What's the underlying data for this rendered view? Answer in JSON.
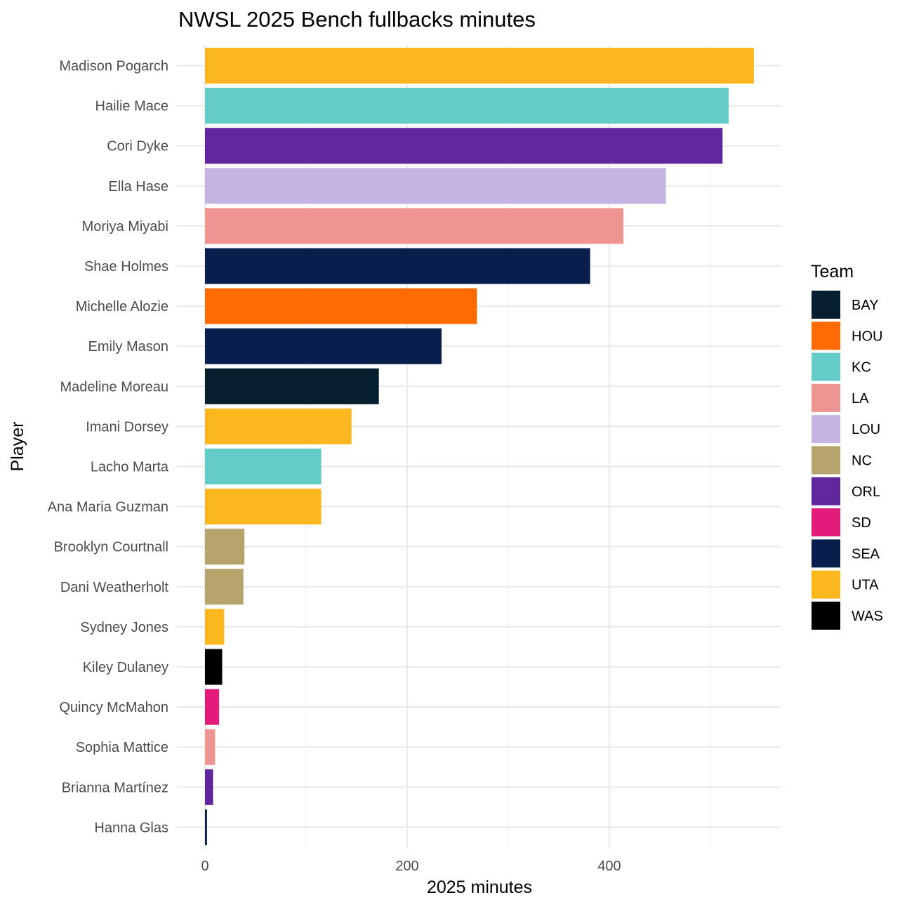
{
  "chart_data": {
    "type": "bar",
    "orientation": "horizontal",
    "title": "NWSL 2025 Bench fullbacks minutes",
    "xlabel": "2025 minutes",
    "ylabel": "Player",
    "xlim": [
      0,
      570
    ],
    "x_ticks": [
      0,
      200,
      400
    ],
    "x_tick_labels": [
      "0",
      "200",
      "400"
    ],
    "grid": true,
    "legend_title": "Team",
    "legend_position": "right",
    "legend": [
      {
        "team": "BAY",
        "color": "#061f2e"
      },
      {
        "team": "HOU",
        "color": "#ff6b00"
      },
      {
        "team": "KC",
        "color": "#63ccc7"
      },
      {
        "team": "LA",
        "color": "#ef9591"
      },
      {
        "team": "LOU",
        "color": "#c5b4e2"
      },
      {
        "team": "NC",
        "color": "#b5a46b"
      },
      {
        "team": "ORL",
        "color": "#60279d"
      },
      {
        "team": "SD",
        "color": "#e31c79"
      },
      {
        "team": "SEA",
        "color": "#081e4c"
      },
      {
        "team": "UTA",
        "color": "#fdb81f"
      },
      {
        "team": "WAS",
        "color": "#000000"
      }
    ],
    "bars": [
      {
        "player": "Madison Pogarch",
        "team": "UTA",
        "minutes": 543
      },
      {
        "player": "Hailie Mace",
        "team": "KC",
        "minutes": 518
      },
      {
        "player": "Cori Dyke",
        "team": "ORL",
        "minutes": 512
      },
      {
        "player": "Ella Hase",
        "team": "LOU",
        "minutes": 456
      },
      {
        "player": "Moriya Miyabi",
        "team": "LA",
        "minutes": 414
      },
      {
        "player": "Shae Holmes",
        "team": "SEA",
        "minutes": 381
      },
      {
        "player": "Michelle Alozie",
        "team": "HOU",
        "minutes": 269
      },
      {
        "player": "Emily Mason",
        "team": "SEA",
        "minutes": 234
      },
      {
        "player": "Madeline Moreau",
        "team": "BAY",
        "minutes": 172
      },
      {
        "player": "Imani Dorsey",
        "team": "UTA",
        "minutes": 145
      },
      {
        "player": "Lacho Marta",
        "team": "KC",
        "minutes": 115
      },
      {
        "player": "Ana Maria Guzman",
        "team": "UTA",
        "minutes": 115
      },
      {
        "player": "Brooklyn Courtnall",
        "team": "NC",
        "minutes": 39
      },
      {
        "player": "Dani Weatherholt",
        "team": "NC",
        "minutes": 38
      },
      {
        "player": "Sydney Jones",
        "team": "UTA",
        "minutes": 19
      },
      {
        "player": "Kiley Dulaney",
        "team": "WAS",
        "minutes": 17
      },
      {
        "player": "Quincy McMahon",
        "team": "SD",
        "minutes": 14
      },
      {
        "player": "Sophia Mattice",
        "team": "LA",
        "minutes": 10
      },
      {
        "player": "Brianna Martínez",
        "team": "ORL",
        "minutes": 8
      },
      {
        "player": "Hanna Glas",
        "team": "SEA",
        "minutes": 2
      }
    ]
  }
}
